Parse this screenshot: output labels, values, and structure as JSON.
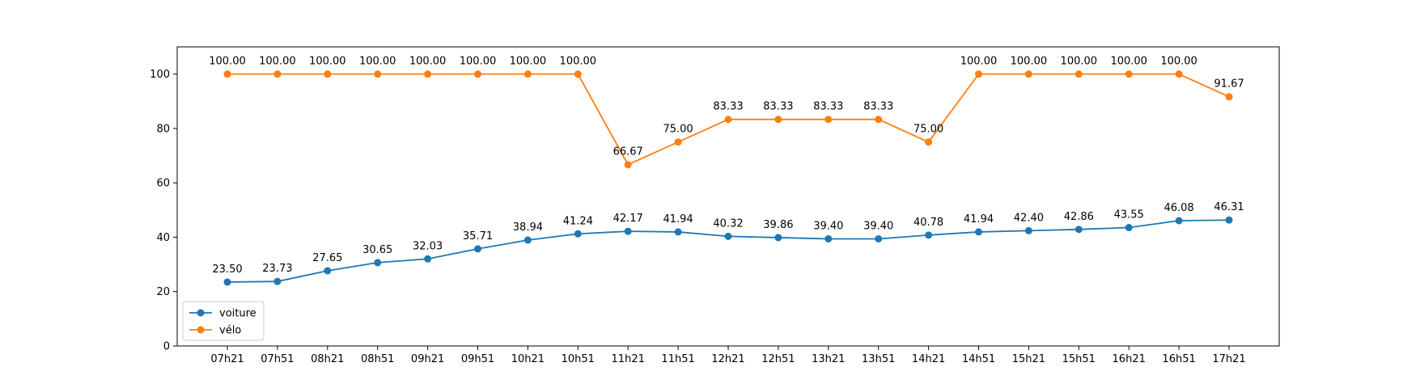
{
  "chart_data": {
    "type": "line",
    "categories": [
      "07h21",
      "07h51",
      "08h21",
      "08h51",
      "09h21",
      "09h51",
      "10h21",
      "10h51",
      "11h21",
      "11h51",
      "12h21",
      "12h51",
      "13h21",
      "13h51",
      "14h21",
      "14h51",
      "15h21",
      "15h51",
      "16h21",
      "16h51",
      "17h21"
    ],
    "series": [
      {
        "name": "voiture",
        "color": "#1f77b4",
        "values": [
          23.5,
          23.73,
          27.65,
          30.65,
          32.03,
          35.71,
          38.94,
          41.24,
          42.17,
          41.94,
          40.32,
          39.86,
          39.4,
          39.4,
          40.78,
          41.94,
          42.4,
          42.86,
          43.55,
          46.08,
          46.31
        ],
        "labels": [
          "23.50",
          "23.73",
          "27.65",
          "30.65",
          "32.03",
          "35.71",
          "38.94",
          "41.24",
          "42.17",
          "41.94",
          "40.32",
          "39.86",
          "39.40",
          "39.40",
          "40.78",
          "41.94",
          "42.40",
          "42.86",
          "43.55",
          "46.08",
          "46.31"
        ]
      },
      {
        "name": "vélo",
        "color": "#ff7f0e",
        "values": [
          100.0,
          100.0,
          100.0,
          100.0,
          100.0,
          100.0,
          100.0,
          100.0,
          66.67,
          75.0,
          83.33,
          83.33,
          83.33,
          83.33,
          75.0,
          100.0,
          100.0,
          100.0,
          100.0,
          100.0,
          91.67
        ],
        "labels": [
          "100.00",
          "100.00",
          "100.00",
          "100.00",
          "100.00",
          "100.00",
          "100.00",
          "100.00",
          "66.67",
          "75.00",
          "83.33",
          "83.33",
          "83.33",
          "83.33",
          "75.00",
          "100.00",
          "100.00",
          "100.00",
          "100.00",
          "100.00",
          "91.67"
        ]
      }
    ],
    "ylim": [
      0,
      110
    ],
    "yticks": [
      "0",
      "20",
      "40",
      "60",
      "80",
      "100"
    ],
    "grid": false,
    "legend_position": "lower-left"
  }
}
